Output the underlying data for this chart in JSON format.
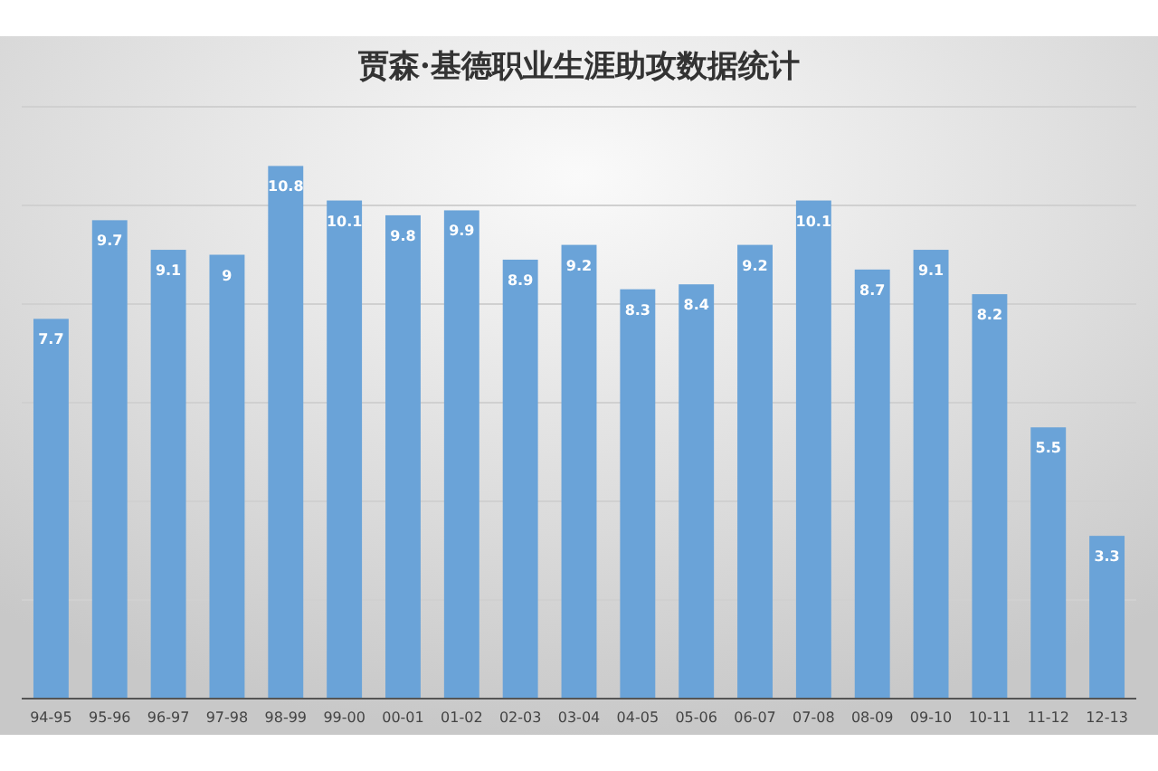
{
  "chart_data": {
    "type": "bar",
    "title": "贾森·基德职业生涯助攻数据统计",
    "categories": [
      "94-95",
      "95-96",
      "96-97",
      "97-98",
      "98-99",
      "99-00",
      "00-01",
      "01-02",
      "02-03",
      "03-04",
      "04-05",
      "05-06",
      "06-07",
      "07-08",
      "08-09",
      "09-10",
      "10-11",
      "11-12",
      "12-13"
    ],
    "values": [
      7.7,
      9.7,
      9.1,
      9,
      10.8,
      10.1,
      9.8,
      9.9,
      8.9,
      9.2,
      8.3,
      8.4,
      9.2,
      10.1,
      8.7,
      9.1,
      8.2,
      5.5,
      3.3
    ],
    "value_labels": [
      "7.7",
      "9.7",
      "9.1",
      "9",
      "10.8",
      "10.1",
      "9.8",
      "9.9",
      "8.9",
      "9.2",
      "8.3",
      "8.4",
      "9.2",
      "10.1",
      "8.7",
      "9.1",
      "8.2",
      "5.5",
      "3.3"
    ],
    "color": "#6aa3d8",
    "ylim": [
      0,
      12
    ],
    "yticks": [
      {
        "value": 0,
        "label": null
      },
      {
        "value": 2,
        "label": null
      },
      {
        "value": 4,
        "label": null
      },
      {
        "value": 6,
        "label": null
      },
      {
        "value": 8,
        "label": null
      },
      {
        "value": 10,
        "label": null
      },
      {
        "value": 12,
        "label": null
      }
    ],
    "grid": "y",
    "tick_labels": "x"
  }
}
